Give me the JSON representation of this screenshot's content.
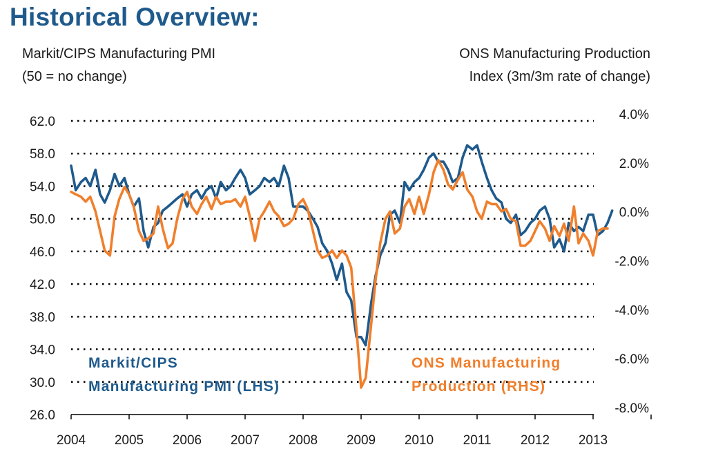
{
  "page": {
    "title": "Historical Overview:",
    "left_axis_title": [
      "Markit/CIPS Manufacturing PMI",
      "(50 = no change)"
    ],
    "right_axis_title": [
      "ONS Manufacturing Production",
      "Index (3m/3m rate of change)"
    ]
  },
  "colors": {
    "title": "#1f5a8c",
    "pmi": "#1f5a8c",
    "ons": "#f07f2c",
    "grid": "#000000"
  },
  "chart_data": {
    "type": "line",
    "x_tick_labels": [
      "2004",
      "2005",
      "2006",
      "2007",
      "2008",
      "2009",
      "2010",
      "2011",
      "2012",
      "2013"
    ],
    "x_range": [
      2004.0,
      2014.0
    ],
    "y_left": {
      "ticks": [
        "62.0",
        "58.0",
        "54.0",
        "50.0",
        "46.0",
        "42.0",
        "38.0",
        "34.0",
        "30.0",
        "26.0"
      ],
      "range": [
        26,
        62
      ]
    },
    "y_right": {
      "ticks": [
        "4.0%",
        "2.0%",
        "0.0%",
        "-2.0%",
        "-4.0%",
        "-6.0%",
        "-8.0%"
      ],
      "range": [
        -8,
        4
      ]
    },
    "grid": "dotted horizontal",
    "series": [
      {
        "name": "Markit/CIPS Manufacturing PMI (LHS)",
        "label_lines": [
          "Markit/CIPS",
          "Manufacturing PMI (LHS)"
        ],
        "axis": "left",
        "points": [
          [
            2004.0,
            56.5
          ],
          [
            2004.08,
            53.5
          ],
          [
            2004.17,
            54.5
          ],
          [
            2004.25,
            55.0
          ],
          [
            2004.33,
            54.0
          ],
          [
            2004.42,
            56.0
          ],
          [
            2004.5,
            53.0
          ],
          [
            2004.58,
            52.0
          ],
          [
            2004.67,
            53.5
          ],
          [
            2004.75,
            55.5
          ],
          [
            2004.83,
            54.0
          ],
          [
            2004.92,
            55.0
          ],
          [
            2005.0,
            53.0
          ],
          [
            2005.08,
            51.5
          ],
          [
            2005.17,
            52.5
          ],
          [
            2005.25,
            48.5
          ],
          [
            2005.33,
            46.5
          ],
          [
            2005.42,
            49.0
          ],
          [
            2005.5,
            49.5
          ],
          [
            2005.58,
            51.0
          ],
          [
            2005.67,
            51.5
          ],
          [
            2005.75,
            52.0
          ],
          [
            2005.83,
            52.5
          ],
          [
            2005.92,
            53.0
          ],
          [
            2006.0,
            51.5
          ],
          [
            2006.08,
            53.0
          ],
          [
            2006.17,
            53.5
          ],
          [
            2006.25,
            52.5
          ],
          [
            2006.33,
            53.5
          ],
          [
            2006.42,
            54.0
          ],
          [
            2006.5,
            52.5
          ],
          [
            2006.58,
            54.5
          ],
          [
            2006.67,
            53.5
          ],
          [
            2006.75,
            54.0
          ],
          [
            2006.83,
            55.0
          ],
          [
            2006.92,
            56.0
          ],
          [
            2007.0,
            55.0
          ],
          [
            2007.08,
            53.0
          ],
          [
            2007.17,
            53.5
          ],
          [
            2007.25,
            54.0
          ],
          [
            2007.33,
            55.0
          ],
          [
            2007.42,
            54.5
          ],
          [
            2007.5,
            55.0
          ],
          [
            2007.58,
            54.0
          ],
          [
            2007.67,
            56.5
          ],
          [
            2007.75,
            55.0
          ],
          [
            2007.83,
            51.5
          ],
          [
            2007.92,
            51.5
          ],
          [
            2008.0,
            51.5
          ],
          [
            2008.08,
            51.0
          ],
          [
            2008.17,
            50.0
          ],
          [
            2008.25,
            49.0
          ],
          [
            2008.33,
            47.0
          ],
          [
            2008.42,
            46.0
          ],
          [
            2008.5,
            44.5
          ],
          [
            2008.58,
            42.5
          ],
          [
            2008.67,
            44.5
          ],
          [
            2008.75,
            41.0
          ],
          [
            2008.83,
            40.0
          ],
          [
            2008.92,
            35.5
          ],
          [
            2009.0,
            35.5
          ],
          [
            2009.08,
            34.5
          ],
          [
            2009.17,
            39.5
          ],
          [
            2009.25,
            43.0
          ],
          [
            2009.33,
            45.5
          ],
          [
            2009.42,
            47.0
          ],
          [
            2009.5,
            50.5
          ],
          [
            2009.58,
            51.0
          ],
          [
            2009.67,
            49.5
          ],
          [
            2009.75,
            54.5
          ],
          [
            2009.83,
            53.5
          ],
          [
            2009.92,
            54.5
          ],
          [
            2010.0,
            55.0
          ],
          [
            2010.08,
            56.0
          ],
          [
            2010.17,
            57.5
          ],
          [
            2010.25,
            58.0
          ],
          [
            2010.33,
            57.0
          ],
          [
            2010.42,
            57.0
          ],
          [
            2010.5,
            56.0
          ],
          [
            2010.58,
            54.5
          ],
          [
            2010.67,
            55.0
          ],
          [
            2010.75,
            57.5
          ],
          [
            2010.83,
            59.0
          ],
          [
            2010.92,
            58.5
          ],
          [
            2011.0,
            59.0
          ],
          [
            2011.08,
            57.0
          ],
          [
            2011.17,
            55.0
          ],
          [
            2011.25,
            53.5
          ],
          [
            2011.33,
            52.5
          ],
          [
            2011.42,
            52.0
          ],
          [
            2011.5,
            50.0
          ],
          [
            2011.58,
            49.5
          ],
          [
            2011.67,
            50.5
          ],
          [
            2011.75,
            48.0
          ],
          [
            2011.83,
            48.5
          ],
          [
            2011.92,
            49.5
          ],
          [
            2012.0,
            50.0
          ],
          [
            2012.08,
            51.0
          ],
          [
            2012.17,
            51.5
          ],
          [
            2012.25,
            50.0
          ],
          [
            2012.33,
            46.5
          ],
          [
            2012.42,
            47.5
          ],
          [
            2012.5,
            46.0
          ],
          [
            2012.58,
            49.5
          ],
          [
            2012.67,
            48.5
          ],
          [
            2012.75,
            49.0
          ],
          [
            2012.83,
            48.5
          ],
          [
            2012.92,
            50.5
          ],
          [
            2013.0,
            50.5
          ],
          [
            2013.08,
            48.0
          ],
          [
            2013.17,
            48.5
          ],
          [
            2013.25,
            49.5
          ],
          [
            2013.33,
            51.0
          ]
        ]
      },
      {
        "name": "ONS Manufacturing Production (RHS)",
        "label_lines": [
          "ONS Manufacturing",
          "Production (RHS)"
        ],
        "axis": "right",
        "points": [
          [
            2004.0,
            1.1
          ],
          [
            2004.08,
            1.0
          ],
          [
            2004.17,
            0.9
          ],
          [
            2004.25,
            0.7
          ],
          [
            2004.33,
            0.9
          ],
          [
            2004.42,
            0.3
          ],
          [
            2004.5,
            -0.5
          ],
          [
            2004.58,
            -1.3
          ],
          [
            2004.67,
            -1.5
          ],
          [
            2004.75,
            0.1
          ],
          [
            2004.83,
            0.8
          ],
          [
            2004.92,
            1.3
          ],
          [
            2005.0,
            1.0
          ],
          [
            2005.08,
            0.5
          ],
          [
            2005.17,
            -0.5
          ],
          [
            2005.25,
            -0.9
          ],
          [
            2005.33,
            -0.8
          ],
          [
            2005.42,
            -0.6
          ],
          [
            2005.5,
            0.5
          ],
          [
            2005.58,
            -0.4
          ],
          [
            2005.67,
            -1.2
          ],
          [
            2005.75,
            -1.0
          ],
          [
            2005.83,
            0.0
          ],
          [
            2005.92,
            0.8
          ],
          [
            2006.0,
            1.1
          ],
          [
            2006.08,
            0.5
          ],
          [
            2006.17,
            0.2
          ],
          [
            2006.25,
            0.6
          ],
          [
            2006.33,
            0.9
          ],
          [
            2006.42,
            0.4
          ],
          [
            2006.5,
            0.9
          ],
          [
            2006.58,
            0.6
          ],
          [
            2006.67,
            0.7
          ],
          [
            2006.75,
            0.7
          ],
          [
            2006.83,
            0.8
          ],
          [
            2006.92,
            0.5
          ],
          [
            2007.0,
            0.9
          ],
          [
            2007.08,
            0.1
          ],
          [
            2007.17,
            -0.9
          ],
          [
            2007.25,
            0.0
          ],
          [
            2007.33,
            0.3
          ],
          [
            2007.42,
            0.7
          ],
          [
            2007.5,
            0.3
          ],
          [
            2007.58,
            0.1
          ],
          [
            2007.67,
            -0.3
          ],
          [
            2007.75,
            -0.2
          ],
          [
            2007.83,
            0.0
          ],
          [
            2007.92,
            0.6
          ],
          [
            2008.0,
            0.8
          ],
          [
            2008.08,
            0.4
          ],
          [
            2008.17,
            -0.5
          ],
          [
            2008.25,
            -1.3
          ],
          [
            2008.33,
            -1.6
          ],
          [
            2008.42,
            -1.5
          ],
          [
            2008.5,
            -1.3
          ],
          [
            2008.58,
            -1.6
          ],
          [
            2008.67,
            -1.3
          ],
          [
            2008.75,
            -1.5
          ],
          [
            2008.83,
            -2.0
          ],
          [
            2008.92,
            -4.5
          ],
          [
            2009.0,
            -6.9
          ],
          [
            2009.08,
            -6.5
          ],
          [
            2009.17,
            -4.4
          ],
          [
            2009.25,
            -2.5
          ],
          [
            2009.33,
            -1.0
          ],
          [
            2009.42,
            0.0
          ],
          [
            2009.5,
            0.3
          ],
          [
            2009.58,
            -0.6
          ],
          [
            2009.67,
            -0.4
          ],
          [
            2009.75,
            0.5
          ],
          [
            2009.83,
            0.8
          ],
          [
            2009.92,
            0.2
          ],
          [
            2010.0,
            0.9
          ],
          [
            2010.08,
            0.2
          ],
          [
            2010.17,
            1.0
          ],
          [
            2010.25,
            1.9
          ],
          [
            2010.33,
            2.4
          ],
          [
            2010.42,
            2.0
          ],
          [
            2010.5,
            1.4
          ],
          [
            2010.58,
            1.2
          ],
          [
            2010.67,
            1.6
          ],
          [
            2010.75,
            1.9
          ],
          [
            2010.83,
            1.2
          ],
          [
            2010.92,
            0.9
          ],
          [
            2011.0,
            0.3
          ],
          [
            2011.08,
            0.0
          ],
          [
            2011.17,
            0.7
          ],
          [
            2011.25,
            0.6
          ],
          [
            2011.33,
            0.6
          ],
          [
            2011.42,
            0.3
          ],
          [
            2011.5,
            0.4
          ],
          [
            2011.58,
            0.0
          ],
          [
            2011.67,
            -0.1
          ],
          [
            2011.75,
            -1.1
          ],
          [
            2011.83,
            -1.1
          ],
          [
            2011.92,
            -0.9
          ],
          [
            2012.0,
            -0.5
          ],
          [
            2012.08,
            -0.1
          ],
          [
            2012.17,
            -0.4
          ],
          [
            2012.25,
            -0.9
          ],
          [
            2012.33,
            -0.3
          ],
          [
            2012.42,
            -0.7
          ],
          [
            2012.5,
            -0.2
          ],
          [
            2012.58,
            -0.9
          ],
          [
            2012.67,
            0.5
          ],
          [
            2012.75,
            -1.0
          ],
          [
            2012.83,
            -0.6
          ],
          [
            2012.92,
            -0.9
          ],
          [
            2013.0,
            -1.5
          ],
          [
            2013.08,
            -0.5
          ],
          [
            2013.17,
            -0.4
          ],
          [
            2013.25,
            -0.4
          ]
        ]
      }
    ]
  }
}
